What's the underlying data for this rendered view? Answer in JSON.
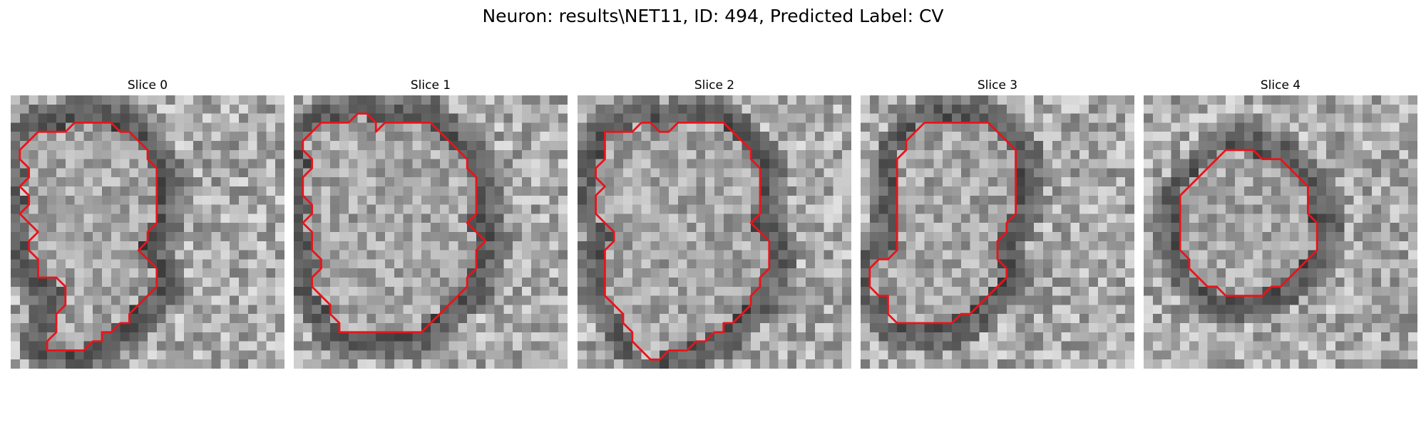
{
  "figure": {
    "title": "Neuron: results\\NET11, ID: 494, Predicted Label: CV"
  },
  "panels": [
    {
      "title": "Slice 0",
      "description": "Grayscale microscopy crop, light cell interior ringed by dark membrane",
      "contour": [
        [
          7,
          3
        ],
        [
          11,
          3
        ],
        [
          12,
          4
        ],
        [
          13,
          4
        ],
        [
          15,
          6
        ],
        [
          15,
          7
        ],
        [
          16,
          8
        ],
        [
          16,
          10
        ],
        [
          16,
          14
        ],
        [
          15,
          15
        ],
        [
          15,
          16
        ],
        [
          14,
          17
        ],
        [
          15,
          18
        ],
        [
          16,
          19
        ],
        [
          16,
          20
        ],
        [
          16,
          21
        ],
        [
          15,
          22
        ],
        [
          14,
          23
        ],
        [
          13,
          24
        ],
        [
          13,
          25
        ],
        [
          12,
          25
        ],
        [
          11,
          26
        ],
        [
          10,
          26
        ],
        [
          10,
          27
        ],
        [
          9,
          27
        ],
        [
          8,
          28
        ],
        [
          7,
          28
        ],
        [
          6,
          28
        ],
        [
          5,
          28
        ],
        [
          4,
          28
        ],
        [
          4,
          27
        ],
        [
          5,
          26
        ],
        [
          5,
          24
        ],
        [
          6,
          23
        ],
        [
          6,
          21
        ],
        [
          5,
          20
        ],
        [
          4,
          20
        ],
        [
          3,
          20
        ],
        [
          3,
          19
        ],
        [
          3,
          18
        ],
        [
          2,
          17
        ],
        [
          2,
          16
        ],
        [
          3,
          15
        ],
        [
          2,
          14
        ],
        [
          1,
          13
        ],
        [
          2,
          12
        ],
        [
          2,
          11
        ],
        [
          1,
          10
        ],
        [
          2,
          9
        ],
        [
          2,
          8
        ],
        [
          1,
          7
        ],
        [
          1,
          6
        ],
        [
          2,
          5
        ],
        [
          3,
          4
        ],
        [
          5,
          4
        ],
        [
          6,
          4
        ],
        [
          7,
          3
        ]
      ],
      "contour_color": "#e8141a"
    },
    {
      "title": "Slice 1",
      "description": "Grayscale microscopy crop, large round cell with dark boundary",
      "contour": [
        [
          7,
          2
        ],
        [
          8,
          2
        ],
        [
          9,
          3
        ],
        [
          9,
          4
        ],
        [
          10,
          3
        ],
        [
          11,
          3
        ],
        [
          12,
          3
        ],
        [
          13,
          3
        ],
        [
          14,
          3
        ],
        [
          15,
          3
        ],
        [
          16,
          4
        ],
        [
          17,
          5
        ],
        [
          18,
          6
        ],
        [
          19,
          7
        ],
        [
          19,
          8
        ],
        [
          20,
          9
        ],
        [
          20,
          10
        ],
        [
          20,
          11
        ],
        [
          20,
          12
        ],
        [
          20,
          13
        ],
        [
          19,
          14
        ],
        [
          20,
          15
        ],
        [
          21,
          16
        ],
        [
          20,
          17
        ],
        [
          20,
          18
        ],
        [
          20,
          19
        ],
        [
          19,
          20
        ],
        [
          19,
          21
        ],
        [
          18,
          22
        ],
        [
          17,
          23
        ],
        [
          16,
          24
        ],
        [
          15,
          25
        ],
        [
          14,
          26
        ],
        [
          13,
          26
        ],
        [
          12,
          26
        ],
        [
          11,
          26
        ],
        [
          10,
          26
        ],
        [
          9,
          26
        ],
        [
          8,
          26
        ],
        [
          7,
          26
        ],
        [
          6,
          26
        ],
        [
          5,
          26
        ],
        [
          5,
          25
        ],
        [
          4,
          24
        ],
        [
          4,
          23
        ],
        [
          3,
          22
        ],
        [
          2,
          21
        ],
        [
          2,
          20
        ],
        [
          3,
          19
        ],
        [
          3,
          18
        ],
        [
          2,
          17
        ],
        [
          2,
          16
        ],
        [
          2,
          15
        ],
        [
          1,
          14
        ],
        [
          2,
          13
        ],
        [
          2,
          12
        ],
        [
          1,
          11
        ],
        [
          1,
          10
        ],
        [
          1,
          9
        ],
        [
          2,
          8
        ],
        [
          2,
          7
        ],
        [
          1,
          6
        ],
        [
          1,
          5
        ],
        [
          2,
          4
        ],
        [
          3,
          3
        ],
        [
          4,
          3
        ],
        [
          5,
          3
        ],
        [
          6,
          3
        ],
        [
          7,
          2
        ]
      ],
      "contour_color": "#e8141a"
    },
    {
      "title": "Slice 2",
      "description": "Grayscale microscopy crop, cell with dark edges and lower protrusion",
      "contour": [
        [
          7,
          3
        ],
        [
          8,
          3
        ],
        [
          9,
          4
        ],
        [
          10,
          4
        ],
        [
          11,
          3
        ],
        [
          12,
          3
        ],
        [
          13,
          3
        ],
        [
          14,
          3
        ],
        [
          15,
          3
        ],
        [
          16,
          3
        ],
        [
          17,
          4
        ],
        [
          18,
          5
        ],
        [
          19,
          6
        ],
        [
          19,
          7
        ],
        [
          20,
          8
        ],
        [
          20,
          9
        ],
        [
          20,
          10
        ],
        [
          20,
          11
        ],
        [
          20,
          12
        ],
        [
          20,
          13
        ],
        [
          19,
          14
        ],
        [
          20,
          15
        ],
        [
          21,
          16
        ],
        [
          21,
          17
        ],
        [
          21,
          18
        ],
        [
          21,
          19
        ],
        [
          20,
          20
        ],
        [
          20,
          21
        ],
        [
          19,
          22
        ],
        [
          19,
          23
        ],
        [
          18,
          24
        ],
        [
          17,
          25
        ],
        [
          16,
          25
        ],
        [
          16,
          26
        ],
        [
          15,
          26
        ],
        [
          14,
          27
        ],
        [
          13,
          27
        ],
        [
          12,
          28
        ],
        [
          11,
          28
        ],
        [
          10,
          28
        ],
        [
          9,
          29
        ],
        [
          8,
          29
        ],
        [
          7,
          28
        ],
        [
          6,
          27
        ],
        [
          6,
          26
        ],
        [
          5,
          25
        ],
        [
          5,
          24
        ],
        [
          4,
          23
        ],
        [
          3,
          22
        ],
        [
          3,
          21
        ],
        [
          3,
          20
        ],
        [
          3,
          19
        ],
        [
          3,
          18
        ],
        [
          3,
          17
        ],
        [
          4,
          16
        ],
        [
          4,
          15
        ],
        [
          3,
          14
        ],
        [
          2,
          13
        ],
        [
          2,
          12
        ],
        [
          2,
          11
        ],
        [
          3,
          10
        ],
        [
          2,
          9
        ],
        [
          2,
          8
        ],
        [
          3,
          7
        ],
        [
          3,
          6
        ],
        [
          3,
          5
        ],
        [
          3,
          4
        ],
        [
          4,
          4
        ],
        [
          5,
          4
        ],
        [
          6,
          4
        ],
        [
          7,
          3
        ]
      ],
      "contour_color": "#e8141a"
    },
    {
      "title": "Slice 3",
      "description": "Grayscale microscopy crop, cell with dark diagonal structure at right",
      "contour": [
        [
          8,
          3
        ],
        [
          11,
          3
        ],
        [
          12,
          3
        ],
        [
          13,
          3
        ],
        [
          14,
          3
        ],
        [
          15,
          4
        ],
        [
          16,
          5
        ],
        [
          17,
          6
        ],
        [
          17,
          7
        ],
        [
          17,
          8
        ],
        [
          17,
          9
        ],
        [
          17,
          10
        ],
        [
          17,
          11
        ],
        [
          17,
          12
        ],
        [
          17,
          13
        ],
        [
          16,
          14
        ],
        [
          16,
          15
        ],
        [
          15,
          16
        ],
        [
          15,
          17
        ],
        [
          15,
          18
        ],
        [
          16,
          19
        ],
        [
          16,
          20
        ],
        [
          15,
          21
        ],
        [
          14,
          22
        ],
        [
          13,
          23
        ],
        [
          12,
          24
        ],
        [
          11,
          24
        ],
        [
          10,
          25
        ],
        [
          9,
          25
        ],
        [
          8,
          25
        ],
        [
          7,
          25
        ],
        [
          6,
          25
        ],
        [
          5,
          25
        ],
        [
          4,
          25
        ],
        [
          3,
          24
        ],
        [
          3,
          23
        ],
        [
          3,
          22
        ],
        [
          2,
          22
        ],
        [
          1,
          21
        ],
        [
          1,
          20
        ],
        [
          1,
          19
        ],
        [
          2,
          18
        ],
        [
          3,
          18
        ],
        [
          4,
          17
        ],
        [
          4,
          16
        ],
        [
          4,
          15
        ],
        [
          4,
          14
        ],
        [
          4,
          13
        ],
        [
          4,
          12
        ],
        [
          4,
          11
        ],
        [
          4,
          10
        ],
        [
          4,
          9
        ],
        [
          4,
          8
        ],
        [
          4,
          7
        ],
        [
          5,
          6
        ],
        [
          5,
          5
        ],
        [
          6,
          4
        ],
        [
          7,
          3
        ],
        [
          8,
          3
        ]
      ],
      "contour_color": "#e8141a"
    },
    {
      "title": "Slice 4",
      "description": "Grayscale microscopy crop, smaller round cell centered",
      "contour": [
        [
          9,
          6
        ],
        [
          10,
          6
        ],
        [
          11,
          6
        ],
        [
          12,
          6
        ],
        [
          13,
          7
        ],
        [
          14,
          7
        ],
        [
          15,
          7
        ],
        [
          16,
          8
        ],
        [
          17,
          9
        ],
        [
          18,
          10
        ],
        [
          18,
          11
        ],
        [
          18,
          12
        ],
        [
          18,
          13
        ],
        [
          19,
          14
        ],
        [
          19,
          15
        ],
        [
          19,
          16
        ],
        [
          19,
          17
        ],
        [
          18,
          18
        ],
        [
          17,
          19
        ],
        [
          16,
          20
        ],
        [
          15,
          21
        ],
        [
          14,
          21
        ],
        [
          13,
          22
        ],
        [
          12,
          22
        ],
        [
          11,
          22
        ],
        [
          10,
          22
        ],
        [
          9,
          22
        ],
        [
          8,
          21
        ],
        [
          7,
          21
        ],
        [
          6,
          20
        ],
        [
          5,
          19
        ],
        [
          5,
          18
        ],
        [
          4,
          17
        ],
        [
          4,
          16
        ],
        [
          4,
          15
        ],
        [
          4,
          14
        ],
        [
          4,
          13
        ],
        [
          4,
          12
        ],
        [
          4,
          11
        ],
        [
          5,
          10
        ],
        [
          6,
          9
        ],
        [
          7,
          8
        ],
        [
          8,
          7
        ],
        [
          9,
          6
        ]
      ],
      "contour_color": "#e8141a"
    }
  ]
}
